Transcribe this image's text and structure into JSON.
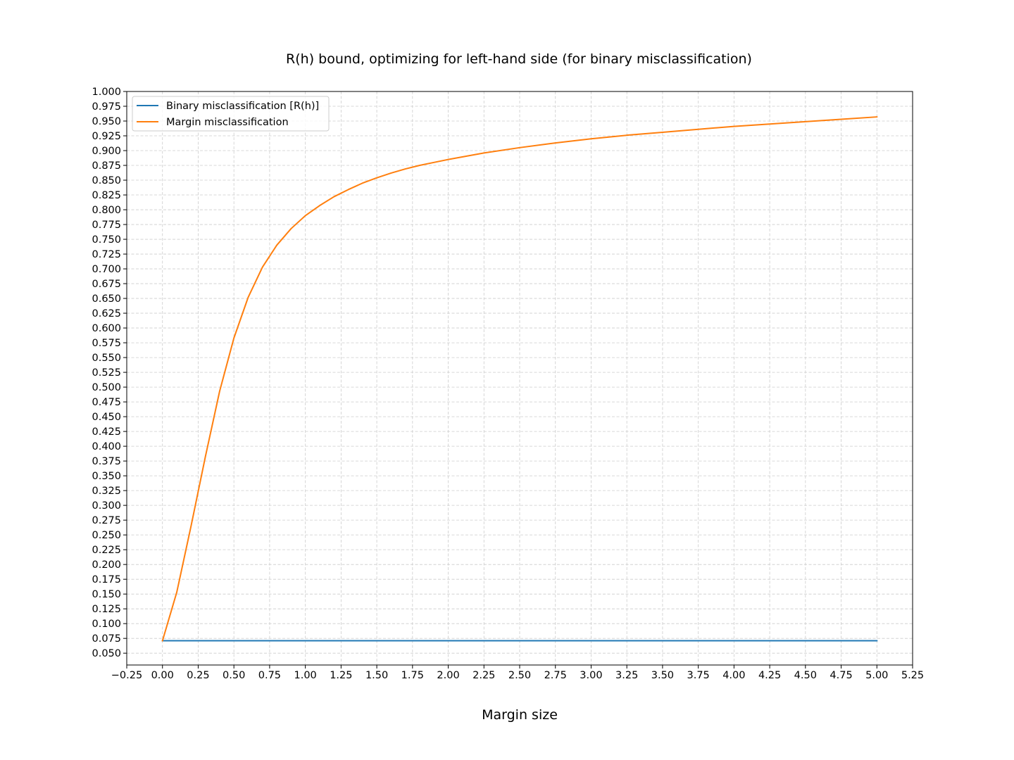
{
  "chart_data": {
    "type": "line",
    "title": "R(h) bound, optimizing for left-hand side (for binary misclassification)",
    "xlabel": "Margin size",
    "ylabel": "",
    "xlim": [
      -0.25,
      5.25
    ],
    "ylim": [
      0.03,
      1.0
    ],
    "xticks": [
      -0.25,
      0.0,
      0.25,
      0.5,
      0.75,
      1.0,
      1.25,
      1.5,
      1.75,
      2.0,
      2.25,
      2.5,
      2.75,
      3.0,
      3.25,
      3.5,
      3.75,
      4.0,
      4.25,
      4.5,
      4.75,
      5.0,
      5.25
    ],
    "xtick_labels": [
      "−0.25",
      "0.00",
      "0.25",
      "0.50",
      "0.75",
      "1.00",
      "1.25",
      "1.50",
      "1.75",
      "2.00",
      "2.25",
      "2.50",
      "2.75",
      "3.00",
      "3.25",
      "3.50",
      "3.75",
      "4.00",
      "4.25",
      "4.50",
      "4.75",
      "5.00",
      "5.25"
    ],
    "yticks": [
      0.05,
      0.075,
      0.1,
      0.125,
      0.15,
      0.175,
      0.2,
      0.225,
      0.25,
      0.275,
      0.3,
      0.325,
      0.35,
      0.375,
      0.4,
      0.425,
      0.45,
      0.475,
      0.5,
      0.525,
      0.55,
      0.575,
      0.6,
      0.625,
      0.65,
      0.675,
      0.7,
      0.725,
      0.75,
      0.775,
      0.8,
      0.825,
      0.85,
      0.875,
      0.9,
      0.925,
      0.95,
      0.975,
      1.0
    ],
    "ytick_labels": [
      "0.050",
      "0.075",
      "0.100",
      "0.125",
      "0.150",
      "0.175",
      "0.200",
      "0.225",
      "0.250",
      "0.275",
      "0.300",
      "0.325",
      "0.350",
      "0.375",
      "0.400",
      "0.425",
      "0.450",
      "0.475",
      "0.500",
      "0.525",
      "0.550",
      "0.575",
      "0.600",
      "0.625",
      "0.650",
      "0.675",
      "0.700",
      "0.725",
      "0.750",
      "0.775",
      "0.800",
      "0.825",
      "0.850",
      "0.875",
      "0.900",
      "0.925",
      "0.950",
      "0.975",
      "1.000"
    ],
    "grid": true,
    "legend_position": "top-left",
    "series": [
      {
        "name": "Binary misclassification [R(h)]",
        "color": "#1f77b4",
        "x": [
          0.0,
          5.0
        ],
        "y": [
          0.071,
          0.071
        ]
      },
      {
        "name": "Margin misclassification",
        "color": "#ff7f0e",
        "x": [
          0.0,
          0.1,
          0.2,
          0.3,
          0.4,
          0.5,
          0.6,
          0.7,
          0.8,
          0.9,
          1.0,
          1.1,
          1.2,
          1.3,
          1.4,
          1.5,
          1.6,
          1.7,
          1.8,
          1.9,
          2.0,
          2.25,
          2.5,
          2.75,
          3.0,
          3.25,
          3.5,
          3.75,
          4.0,
          4.25,
          4.5,
          4.75,
          5.0
        ],
        "y": [
          0.071,
          0.153,
          0.265,
          0.382,
          0.493,
          0.583,
          0.652,
          0.703,
          0.74,
          0.768,
          0.79,
          0.807,
          0.822,
          0.834,
          0.845,
          0.854,
          0.862,
          0.869,
          0.875,
          0.88,
          0.885,
          0.896,
          0.905,
          0.913,
          0.92,
          0.926,
          0.931,
          0.936,
          0.941,
          0.945,
          0.949,
          0.953,
          0.957
        ]
      }
    ]
  }
}
